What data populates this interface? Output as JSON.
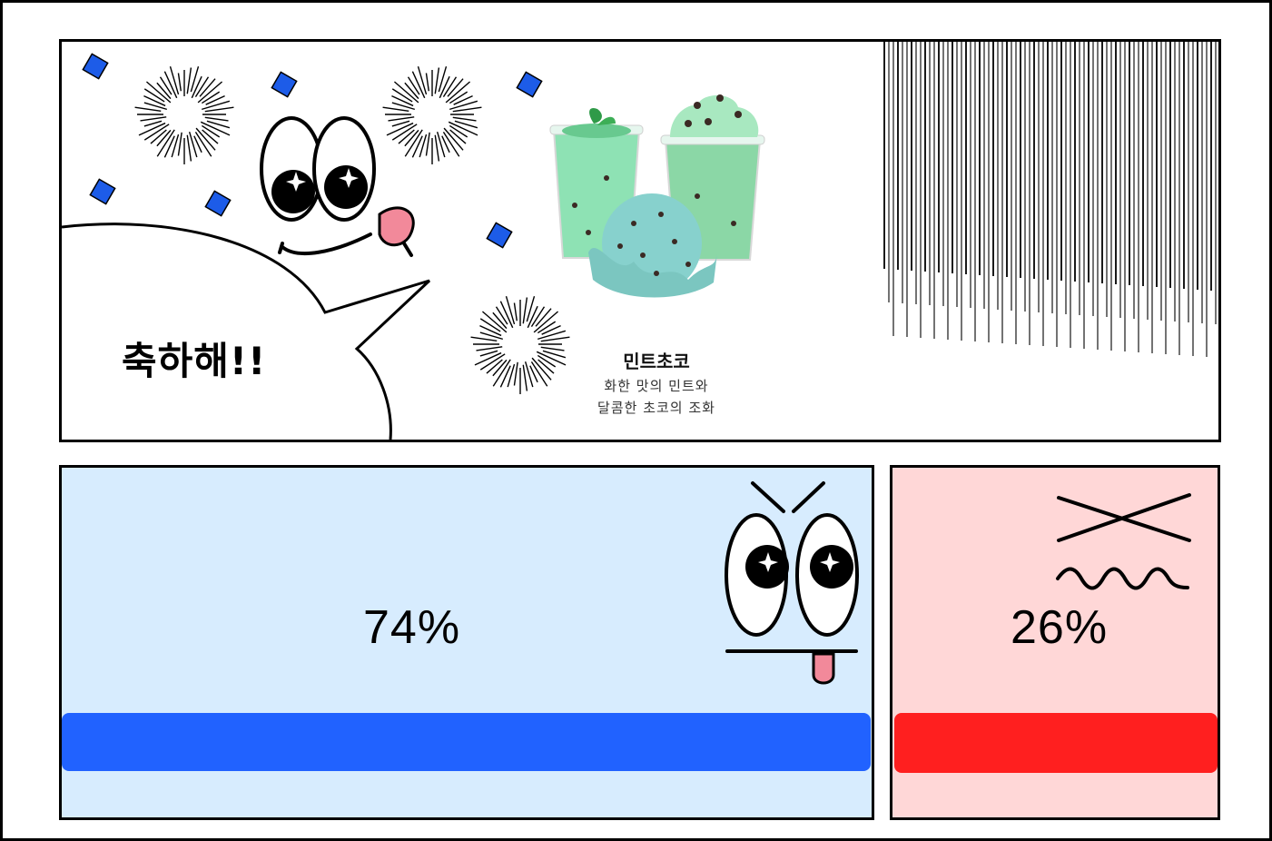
{
  "celebration": {
    "text": "축하해!!"
  },
  "product": {
    "name": "민트초코",
    "description_line1": "화한 맛의 민트와",
    "description_line2": "달콤한 초코의 조화"
  },
  "results": {
    "option_a": {
      "percent_label": "74%",
      "share": 0.74,
      "bar_color": "#2162ff",
      "panel_color": "#d7ecfe"
    },
    "option_b": {
      "percent_label": "26%",
      "share": 0.26,
      "bar_color": "#ff1f1f",
      "panel_color": "#ffd7d7"
    }
  },
  "icons": {
    "mascot": "happy-blob-mascot-icon",
    "eyes": "star-eyes-icon",
    "confetti": "blue-confetti-icon",
    "bursts": "starburst-icon",
    "speed_lines": "speed-lines-icon",
    "product_image": "mint-chocolate-dessert-icon",
    "winner_face": "smug-face-icon",
    "loser_face": "defeated-face-icon"
  }
}
